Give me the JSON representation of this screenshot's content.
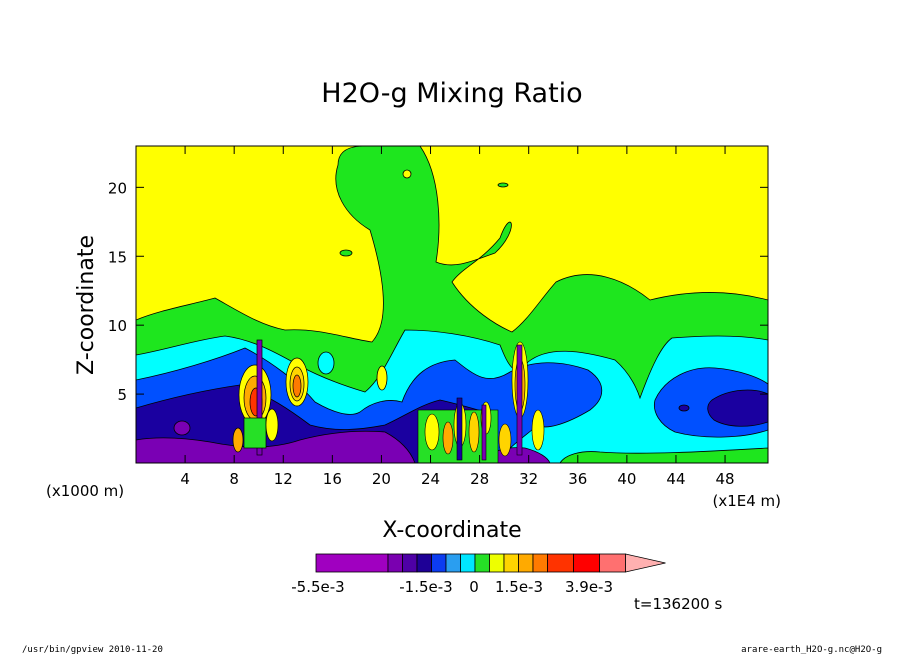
{
  "chart_data": {
    "type": "heatmap",
    "title": "H2O-g Mixing Ratio",
    "xlabel": "X-coordinate",
    "ylabel": "Z-coordinate",
    "x_unit_label": "(x1E4 m)",
    "y_unit_label": "(x1000 m)",
    "xlim": [
      0,
      51.5
    ],
    "ylim": [
      0,
      23
    ],
    "x_ticks": [
      4,
      8,
      12,
      16,
      20,
      24,
      28,
      32,
      36,
      40,
      44,
      48
    ],
    "x_tick_labels": [
      "4",
      "8",
      "12",
      "16",
      "20",
      "24",
      "28",
      "32",
      "36",
      "40",
      "44",
      "48"
    ],
    "y_ticks": [
      5,
      10,
      15,
      20
    ],
    "y_tick_labels": [
      "5",
      "10",
      "15",
      "20"
    ],
    "colorbar": {
      "labels": [
        "-5.5e-3",
        "-1.5e-3",
        "0",
        "1.5e-3",
        "3.9e-3"
      ],
      "colors": [
        "#a000c0",
        "#7a00b0",
        "#4e00a6",
        "#1e0096",
        "#0c3cf0",
        "#2a9ef0",
        "#00e6ff",
        "#26e026",
        "#eeff00",
        "#ffd400",
        "#ffaa00",
        "#ff7a00",
        "#ff3300",
        "#ff0000",
        "#ff7070",
        "#ffb0b0"
      ]
    },
    "regions": [
      {
        "z_top": 23,
        "color": "#ffff00"
      },
      {
        "z_top": 11,
        "color": "#1ee61e"
      },
      {
        "z_top": 8,
        "color": "#00ffff"
      },
      {
        "z_top": 5.5,
        "color": "#0050ff"
      },
      {
        "z_top": 4,
        "color": "#1a00a0"
      },
      {
        "z_top": 2,
        "color": "#7a00b4"
      }
    ],
    "time_label": "t=136200 s"
  },
  "footer": {
    "left": "/usr/bin/gpview  2010-11-20",
    "right": "arare-earth_H2O-g.nc@H2O-g"
  }
}
